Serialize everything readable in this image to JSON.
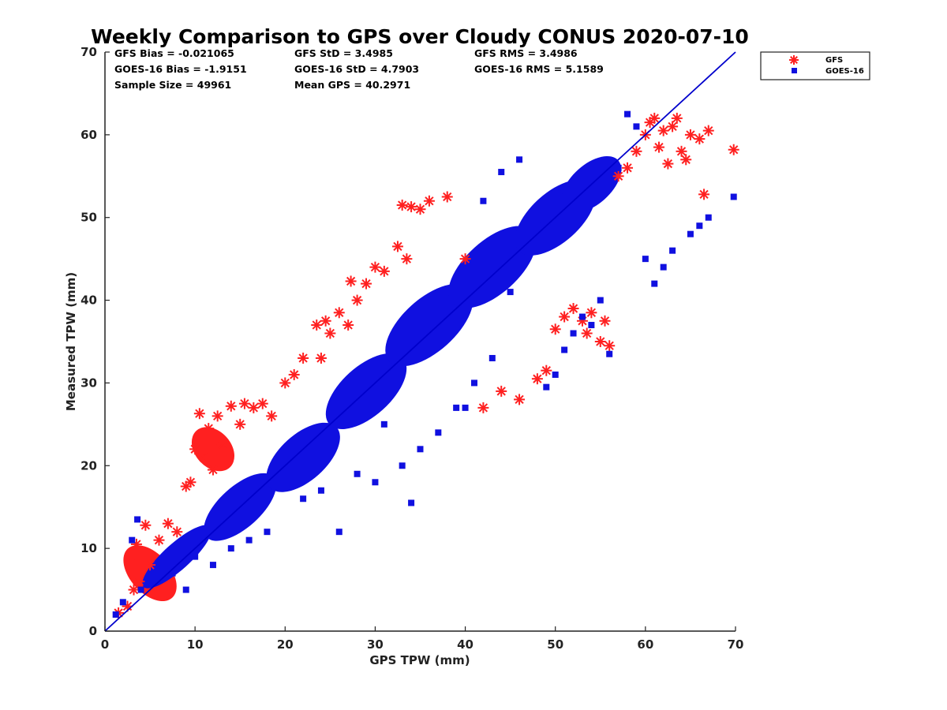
{
  "chart_data": {
    "type": "scatter",
    "title": "Weekly Comparison to GPS over Cloudy CONUS 2020-07-10",
    "xlabel": "GPS TPW (mm)",
    "ylabel": "Measured TPW (mm)",
    "xlim": [
      0,
      70
    ],
    "ylim": [
      0,
      70
    ],
    "xticks": [
      0,
      10,
      20,
      30,
      40,
      50,
      60,
      70
    ],
    "yticks": [
      0,
      10,
      20,
      30,
      40,
      50,
      60,
      70
    ],
    "grid": false,
    "legend_position": "top-right-outside",
    "reference_line": {
      "x": [
        0,
        70
      ],
      "y": [
        0,
        70
      ],
      "color": "#0000cc"
    },
    "stats": [
      "GFS Bias = -0.021065",
      "GFS StD = 3.4985",
      "GFS RMS = 3.4986",
      "GOES-16 Bias = -1.9151",
      "GOES-16 StD = 4.7903",
      "GOES-16 RMS = 5.1589",
      "Sample Size = 49961",
      "Mean GPS = 40.2971"
    ],
    "series": [
      {
        "name": "GFS",
        "marker": "asterisk",
        "color": "#ff2020",
        "x": [
          1.5,
          2.5,
          3.0,
          3.2,
          3.5,
          3.8,
          4.5,
          5.0,
          6.0,
          7.0,
          8.0,
          9.0,
          9.5,
          10.0,
          10.5,
          11.0,
          11.5,
          12.0,
          12.5,
          13.0,
          14.0,
          15.0,
          15.5,
          16.5,
          17.5,
          18.5,
          20.0,
          21.0,
          22.0,
          23.5,
          24.0,
          24.5,
          25.0,
          26.0,
          27.0,
          27.3,
          28.0,
          29.0,
          30.0,
          31.0,
          32.5,
          33.0,
          33.5,
          34.0,
          35.0,
          36.0,
          38.0,
          40.0,
          42.0,
          44.0,
          46.0,
          48.0,
          49.0,
          50.0,
          51.0,
          52.0,
          53.0,
          53.5,
          54.0,
          55.0,
          55.5,
          56.0,
          57.0,
          58.0,
          59.0,
          60.0,
          60.5,
          61.0,
          61.5,
          62.0,
          62.5,
          63.0,
          63.5,
          64.0,
          64.5,
          65.0,
          66.0,
          66.5,
          67.0,
          69.8
        ],
        "y": [
          2.2,
          3.0,
          8.5,
          5.0,
          10.5,
          6.0,
          12.8,
          8.0,
          11.0,
          13.0,
          12.0,
          17.5,
          18.0,
          22.0,
          26.3,
          21.0,
          24.5,
          19.5,
          26.0,
          22.5,
          27.2,
          25.0,
          27.5,
          27.0,
          27.5,
          26.0,
          30.0,
          31.0,
          33.0,
          37.0,
          33.0,
          37.5,
          36.0,
          38.5,
          37.0,
          42.3,
          40.0,
          42.0,
          44.0,
          43.5,
          46.5,
          51.5,
          45.0,
          51.3,
          51.0,
          52.0,
          52.5,
          45.0,
          27.0,
          29.0,
          28.0,
          30.5,
          31.5,
          36.5,
          38.0,
          39.0,
          37.5,
          36.0,
          38.5,
          35.0,
          37.5,
          34.5,
          55.0,
          56.0,
          58.0,
          60.0,
          61.5,
          62.0,
          58.5,
          60.5,
          56.5,
          61.0,
          62.0,
          58.0,
          57.0,
          60.0,
          59.5,
          52.8,
          60.5,
          58.2
        ]
      },
      {
        "name": "GOES-16",
        "marker": "square",
        "color": "#1010e0",
        "x": [
          1.2,
          2.0,
          3.0,
          3.6,
          4.0,
          5.5,
          7.5,
          9.0,
          10.0,
          12.0,
          14.0,
          16.0,
          18.0,
          22.0,
          24.0,
          26.0,
          28.0,
          30.0,
          31.0,
          33.0,
          34.0,
          35.0,
          37.0,
          39.0,
          40.0,
          41.0,
          42.0,
          43.0,
          44.0,
          45.0,
          46.0,
          47.0,
          48.0,
          49.0,
          50.0,
          51.0,
          52.0,
          53.0,
          54.0,
          55.0,
          56.0,
          57.0,
          58.0,
          59.0,
          60.0,
          61.0,
          62.0,
          63.0,
          65.0,
          66.0,
          67.0,
          69.8
        ],
        "y": [
          2.0,
          3.5,
          11.0,
          13.5,
          5.0,
          6.0,
          7.0,
          5.0,
          9.0,
          8.0,
          10.0,
          11.0,
          12.0,
          16.0,
          17.0,
          12.0,
          19.0,
          18.0,
          25.0,
          20.0,
          15.5,
          22.0,
          24.0,
          27.0,
          27.0,
          30.0,
          52.0,
          33.0,
          55.5,
          41.0,
          57.0,
          47.0,
          49.0,
          29.5,
          31.0,
          34.0,
          36.0,
          38.0,
          37.0,
          40.0,
          33.5,
          56.0,
          62.5,
          61.0,
          45.0,
          42.0,
          44.0,
          46.0,
          48.0,
          49.0,
          50.0,
          52.5
        ]
      }
    ]
  }
}
